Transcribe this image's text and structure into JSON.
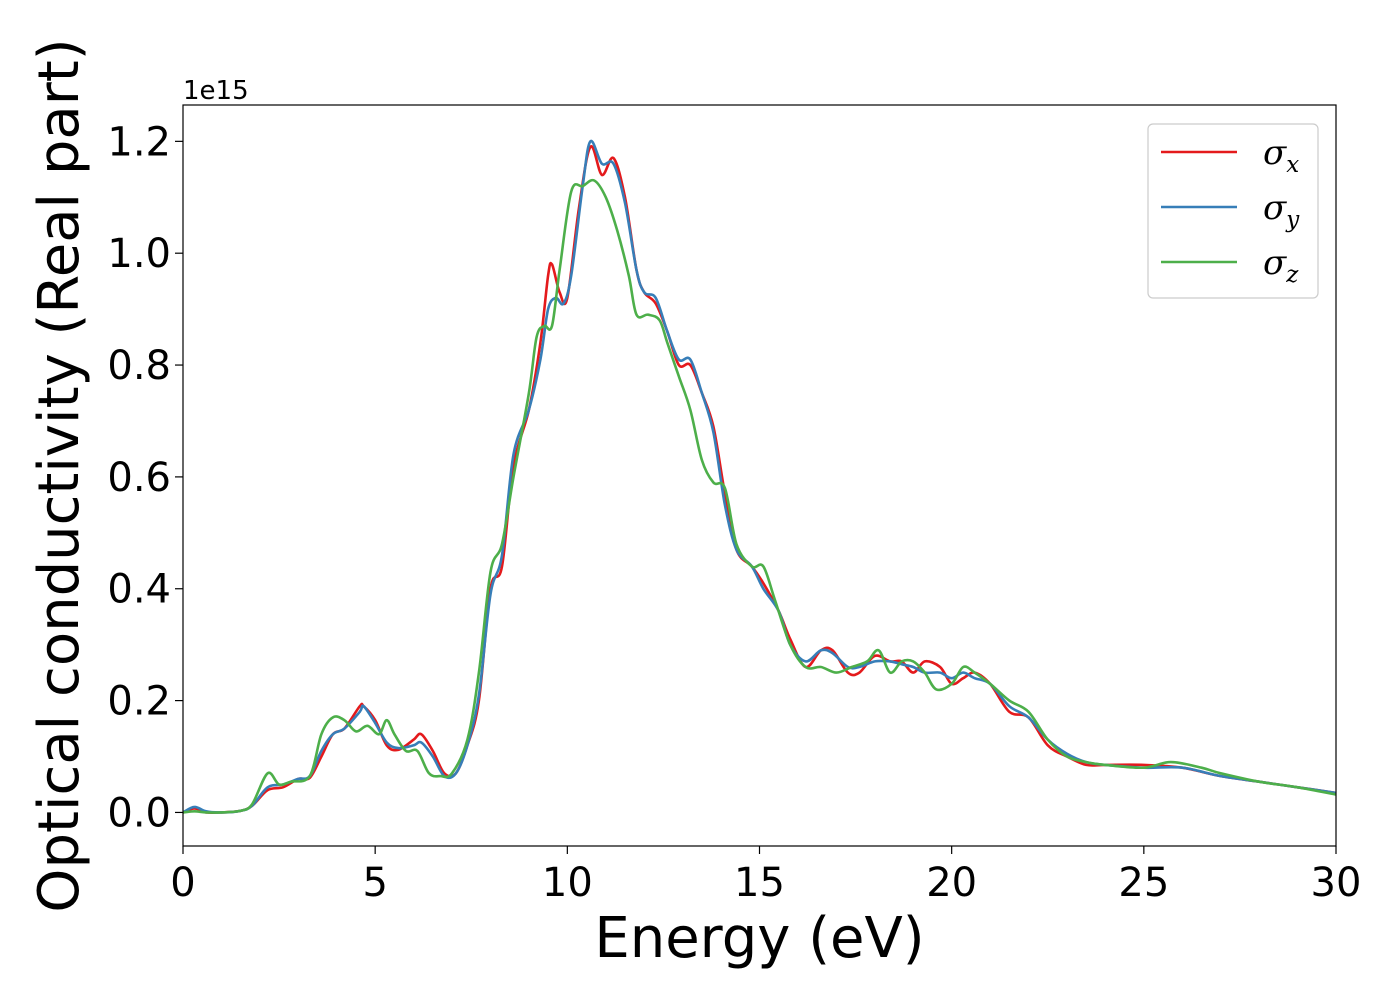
{
  "chart_data": {
    "type": "line",
    "xlabel": "Energy (eV)",
    "ylabel": "Optical conductivity (Real part)",
    "y_offset_label": "1e15",
    "xlim": [
      0,
      30
    ],
    "ylim": [
      -0.06,
      1.265
    ],
    "y_scale_multiplier": 1000000000000000.0,
    "x_ticks": [
      0,
      5,
      10,
      15,
      20,
      25,
      30
    ],
    "y_ticks": [
      0.0,
      0.2,
      0.4,
      0.6,
      0.8,
      1.0,
      1.2
    ],
    "grid": false,
    "legend_position": "top-right",
    "series": [
      {
        "name": "σx",
        "symbol": "σ",
        "subscript": "x",
        "color": "#e41a1c",
        "x": [
          0,
          0.3,
          0.6,
          1.0,
          1.5,
          1.8,
          2.2,
          2.6,
          3.0,
          3.3,
          3.6,
          3.9,
          4.2,
          4.6,
          4.7,
          5.0,
          5.3,
          5.6,
          6.0,
          6.2,
          6.5,
          6.8,
          7.1,
          7.4,
          7.7,
          8.0,
          8.3,
          8.6,
          9.0,
          9.3,
          9.5,
          9.6,
          9.8,
          10.0,
          10.3,
          10.6,
          10.9,
          11.2,
          11.5,
          11.8,
          12.0,
          12.3,
          12.6,
          12.9,
          13.2,
          13.5,
          13.8,
          14.1,
          14.4,
          14.8,
          15.1,
          15.5,
          15.8,
          16.2,
          16.6,
          16.9,
          17.3,
          17.6,
          18.0,
          18.4,
          18.7,
          19.0,
          19.3,
          19.7,
          20.0,
          20.3,
          20.6,
          21.0,
          21.5,
          22.0,
          22.5,
          23.0,
          23.5,
          24.0,
          25.0,
          26.0,
          27.0,
          28.0,
          29.0,
          30.0
        ],
        "y": [
          0.0,
          0.007,
          0.0,
          0.0,
          0.003,
          0.012,
          0.04,
          0.045,
          0.06,
          0.062,
          0.1,
          0.14,
          0.15,
          0.19,
          0.19,
          0.165,
          0.12,
          0.112,
          0.13,
          0.14,
          0.11,
          0.07,
          0.07,
          0.12,
          0.2,
          0.4,
          0.44,
          0.62,
          0.72,
          0.84,
          0.96,
          0.98,
          0.93,
          0.92,
          1.08,
          1.19,
          1.14,
          1.17,
          1.1,
          0.97,
          0.93,
          0.91,
          0.86,
          0.8,
          0.8,
          0.75,
          0.69,
          0.57,
          0.47,
          0.44,
          0.41,
          0.36,
          0.31,
          0.26,
          0.29,
          0.29,
          0.25,
          0.25,
          0.28,
          0.27,
          0.27,
          0.25,
          0.27,
          0.26,
          0.23,
          0.24,
          0.25,
          0.23,
          0.18,
          0.17,
          0.12,
          0.1,
          0.085,
          0.085,
          0.085,
          0.08,
          0.065,
          0.055,
          0.045,
          0.035
        ]
      },
      {
        "name": "σy",
        "symbol": "σ",
        "subscript": "y",
        "color": "#377eb8",
        "x": [
          0,
          0.3,
          0.6,
          1.0,
          1.5,
          1.8,
          2.2,
          2.6,
          3.0,
          3.3,
          3.6,
          3.9,
          4.2,
          4.6,
          4.7,
          5.0,
          5.3,
          5.6,
          6.0,
          6.2,
          6.5,
          6.8,
          7.1,
          7.4,
          7.7,
          8.0,
          8.3,
          8.6,
          9.0,
          9.3,
          9.5,
          9.7,
          9.9,
          10.1,
          10.4,
          10.6,
          10.9,
          11.2,
          11.5,
          11.8,
          12.0,
          12.3,
          12.6,
          12.9,
          13.2,
          13.5,
          13.8,
          14.1,
          14.4,
          14.8,
          15.1,
          15.5,
          15.8,
          16.2,
          16.6,
          16.9,
          17.3,
          17.6,
          18.0,
          18.4,
          18.7,
          19.0,
          19.3,
          19.7,
          20.0,
          20.3,
          20.6,
          21.0,
          21.5,
          22.0,
          22.5,
          23.0,
          23.5,
          24.0,
          25.0,
          26.0,
          27.0,
          28.0,
          29.0,
          30.0
        ],
        "y": [
          0.0,
          0.01,
          0.002,
          0.0,
          0.003,
          0.012,
          0.045,
          0.05,
          0.06,
          0.065,
          0.11,
          0.14,
          0.15,
          0.18,
          0.19,
          0.16,
          0.125,
          0.115,
          0.12,
          0.125,
          0.1,
          0.065,
          0.07,
          0.12,
          0.21,
          0.39,
          0.46,
          0.64,
          0.72,
          0.81,
          0.9,
          0.92,
          0.91,
          0.96,
          1.12,
          1.2,
          1.16,
          1.16,
          1.09,
          0.97,
          0.93,
          0.92,
          0.86,
          0.81,
          0.81,
          0.75,
          0.68,
          0.55,
          0.47,
          0.44,
          0.4,
          0.36,
          0.3,
          0.27,
          0.29,
          0.285,
          0.26,
          0.26,
          0.27,
          0.27,
          0.265,
          0.26,
          0.25,
          0.25,
          0.24,
          0.25,
          0.24,
          0.23,
          0.19,
          0.17,
          0.13,
          0.105,
          0.09,
          0.085,
          0.08,
          0.08,
          0.065,
          0.055,
          0.045,
          0.035
        ]
      },
      {
        "name": "σz",
        "symbol": "σ",
        "subscript": "z",
        "color": "#4daf4a",
        "x": [
          0,
          0.3,
          0.6,
          1.0,
          1.5,
          1.8,
          2.2,
          2.5,
          2.8,
          3.3,
          3.6,
          3.9,
          4.2,
          4.5,
          4.8,
          5.1,
          5.3,
          5.5,
          5.8,
          6.1,
          6.4,
          6.7,
          7.0,
          7.4,
          7.7,
          8.0,
          8.3,
          8.6,
          9.0,
          9.2,
          9.4,
          9.6,
          9.8,
          10.1,
          10.4,
          10.7,
          11.0,
          11.3,
          11.6,
          11.8,
          12.1,
          12.4,
          12.6,
          12.9,
          13.2,
          13.5,
          13.8,
          14.1,
          14.4,
          14.8,
          15.1,
          15.4,
          15.8,
          16.2,
          16.6,
          17.0,
          17.4,
          17.8,
          18.1,
          18.4,
          18.7,
          19.0,
          19.3,
          19.6,
          20.0,
          20.3,
          20.6,
          21.0,
          21.5,
          22.0,
          22.5,
          23.0,
          23.5,
          24.0,
          25.0,
          25.7,
          26.5,
          27.0,
          28.0,
          29.0,
          30.0
        ],
        "y": [
          0.0,
          0.002,
          0.0,
          0.0,
          0.003,
          0.015,
          0.07,
          0.05,
          0.055,
          0.065,
          0.14,
          0.17,
          0.165,
          0.145,
          0.155,
          0.14,
          0.165,
          0.14,
          0.11,
          0.11,
          0.07,
          0.065,
          0.07,
          0.13,
          0.25,
          0.43,
          0.48,
          0.6,
          0.75,
          0.85,
          0.87,
          0.87,
          0.97,
          1.11,
          1.12,
          1.13,
          1.1,
          1.04,
          0.96,
          0.89,
          0.89,
          0.88,
          0.84,
          0.78,
          0.72,
          0.63,
          0.59,
          0.58,
          0.48,
          0.44,
          0.44,
          0.38,
          0.3,
          0.26,
          0.26,
          0.25,
          0.26,
          0.27,
          0.29,
          0.25,
          0.27,
          0.27,
          0.25,
          0.22,
          0.23,
          0.26,
          0.25,
          0.23,
          0.2,
          0.18,
          0.13,
          0.1,
          0.09,
          0.085,
          0.08,
          0.09,
          0.08,
          0.07,
          0.055,
          0.045,
          0.032
        ]
      }
    ]
  }
}
